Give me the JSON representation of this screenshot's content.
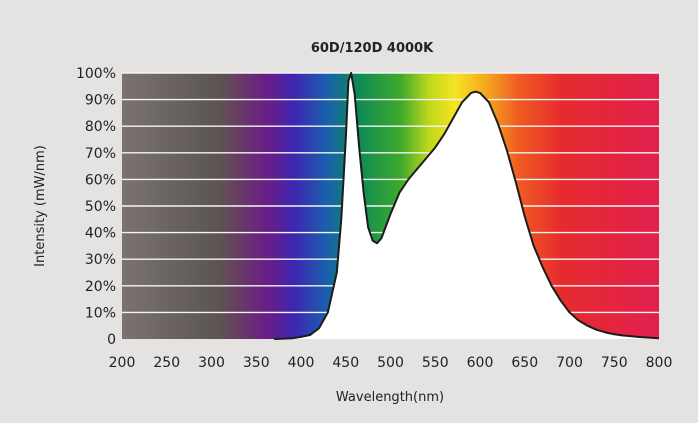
{
  "chart_data": {
    "type": "area",
    "title": "60D/120D  4000K",
    "xlabel": "Wavelength(nm)",
    "ylabel": "Intensity (mW/nm)",
    "xlim": [
      200,
      800
    ],
    "ylim": [
      0,
      100
    ],
    "x_ticks": [
      "200",
      "250",
      "300",
      "350",
      "400",
      "450",
      "500",
      "550",
      "600",
      "650",
      "700",
      "750",
      "800"
    ],
    "y_ticks": [
      "0",
      "10%",
      "20%",
      "30%",
      "40%",
      "50%",
      "60%",
      "70%",
      "80%",
      "90%",
      "100%"
    ],
    "grid": true,
    "series": [
      {
        "x": [
          370,
          390,
          400,
          410,
          420,
          430,
          440,
          445,
          450,
          453,
          456,
          460,
          465,
          470,
          475,
          480,
          485,
          490,
          500,
          510,
          520,
          530,
          540,
          550,
          560,
          570,
          580,
          590,
          595,
          600,
          610,
          620,
          630,
          640,
          650,
          660,
          670,
          680,
          690,
          700,
          710,
          720,
          730,
          740,
          750,
          760,
          780,
          800
        ],
        "y": [
          0,
          0.3,
          0.8,
          1.5,
          4,
          10,
          25,
          45,
          75,
          97,
          100,
          92,
          72,
          55,
          42,
          37,
          36,
          38,
          47,
          55,
          60,
          64,
          68,
          72,
          77,
          83,
          89,
          92.5,
          93,
          92.5,
          89,
          81,
          71,
          59,
          46,
          35,
          27,
          20,
          14.5,
          10,
          7,
          5,
          3.5,
          2.5,
          1.8,
          1.3,
          0.7,
          0.3
        ]
      }
    ],
    "colors": {
      "background": "#e4e3e1",
      "fill": "#ffffff",
      "outline": "#1c1c1c",
      "grid": "#f4f4f4"
    }
  }
}
